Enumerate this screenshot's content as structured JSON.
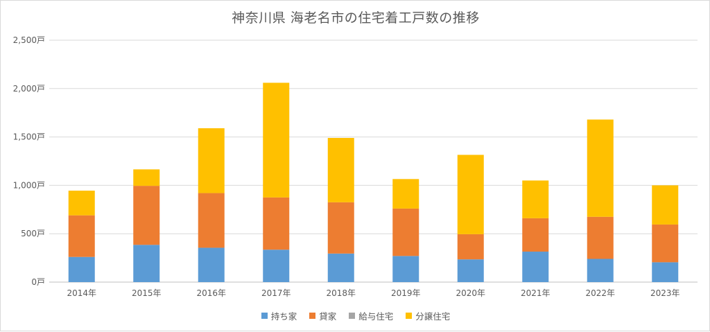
{
  "chart_data": {
    "type": "bar",
    "stacked": true,
    "title": "神奈川県 海老名市の住宅着工戸数の推移",
    "xlabel": "",
    "ylabel": "",
    "categories": [
      "2014年",
      "2015年",
      "2016年",
      "2017年",
      "2018年",
      "2019年",
      "2020年",
      "2021年",
      "2022年",
      "2023年"
    ],
    "ylim": [
      0,
      2500
    ],
    "yticks": [
      {
        "value": 0,
        "label": "0戸"
      },
      {
        "value": 500,
        "label": "500戸"
      },
      {
        "value": 1000,
        "label": "1,000戸"
      },
      {
        "value": 1500,
        "label": "1,500戸"
      },
      {
        "value": 2000,
        "label": "2,000戸"
      },
      {
        "value": 2500,
        "label": "2,500戸"
      }
    ],
    "grid": true,
    "legend_position": "bottom",
    "series": [
      {
        "name": "持ち家",
        "color": "#5b9bd5",
        "values": [
          260,
          385,
          355,
          335,
          295,
          270,
          235,
          315,
          240,
          205
        ]
      },
      {
        "name": "貸家",
        "color": "#ed7d31",
        "values": [
          430,
          610,
          565,
          540,
          530,
          490,
          260,
          345,
          435,
          390
        ]
      },
      {
        "name": "給与住宅",
        "color": "#a5a5a5",
        "values": [
          0,
          0,
          0,
          0,
          0,
          0,
          0,
          0,
          0,
          0
        ]
      },
      {
        "name": "分譲住宅",
        "color": "#ffc000",
        "values": [
          255,
          170,
          670,
          1185,
          665,
          305,
          820,
          390,
          1005,
          405
        ]
      }
    ]
  }
}
